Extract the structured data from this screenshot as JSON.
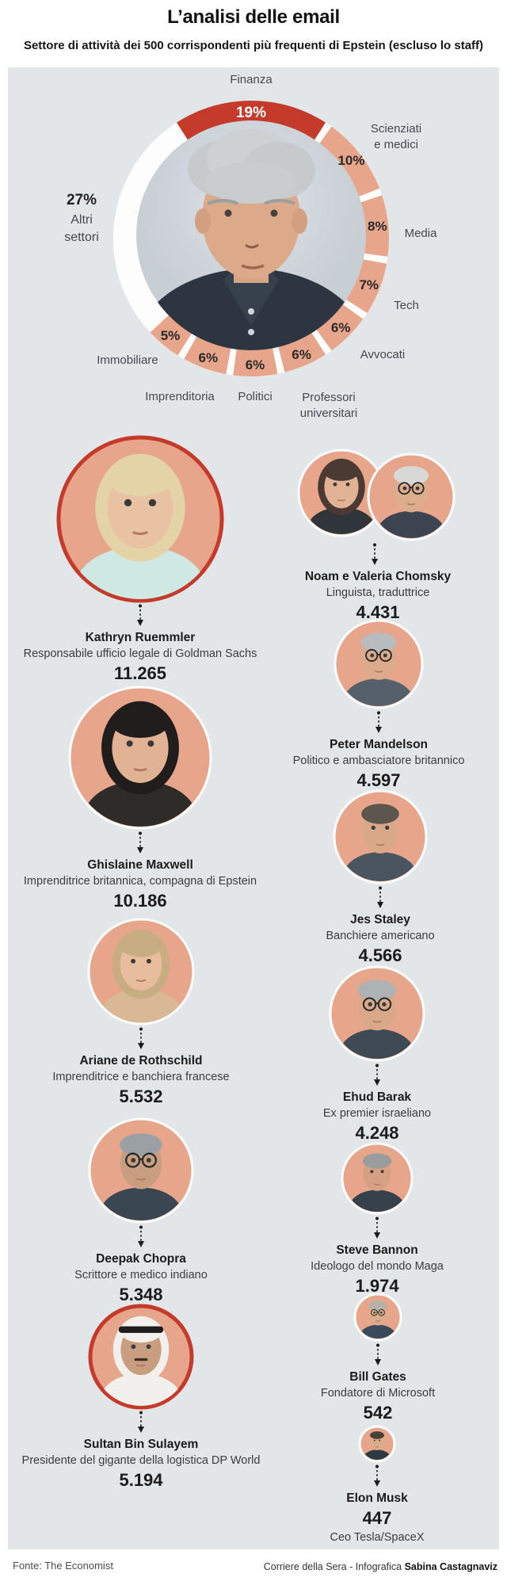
{
  "header": {
    "title": "L’analisi delle email",
    "subtitle": "Settore di attività dei 500 corrispondenti più frequenti di Epstein (escluso lo staff)"
  },
  "colors": {
    "panel_bg": "#e3e6e9",
    "accent_red": "#c43b2b",
    "salmon": "#e7a68b",
    "segment_white": "#fdfdfd",
    "text_dark": "#1b1b1b",
    "text_gray": "#45494d"
  },
  "chart_data": {
    "type": "pie",
    "variant": "donut",
    "unit": "%",
    "center_image_alt": "Jeffrey Epstein",
    "highlight_segment": "Finanza",
    "legend_position": "around",
    "segments": [
      {
        "label": "Finanza",
        "value": 19
      },
      {
        "label": "Scienziati e medici",
        "value": 10
      },
      {
        "label": "Media",
        "value": 8
      },
      {
        "label": "Tech",
        "value": 7
      },
      {
        "label": "Avvocati",
        "value": 6
      },
      {
        "label": "Professori universitari",
        "value": 6
      },
      {
        "label": "Politici",
        "value": 6
      },
      {
        "label": "Imprenditoria",
        "value": 6
      },
      {
        "label": "Immobiliare",
        "value": 5
      },
      {
        "label": "Altri settori",
        "value": 27
      }
    ]
  },
  "people": {
    "left": [
      {
        "id": "kathryn-ruemmler",
        "name": "Kathryn Ruemmler",
        "role": "Responsabile ufficio legale di Goldman Sachs",
        "count": "11.265"
      },
      {
        "id": "ghislaine-maxwell",
        "name": "Ghislaine Maxwell",
        "role": "Imprenditrice britannica, compagna di Epstein",
        "count": "10.186"
      },
      {
        "id": "ariane-de-rothschild",
        "name": "Ariane de Rothschild",
        "role": "Imprenditrice e banchiera francese",
        "count": "5.532"
      },
      {
        "id": "deepak-chopra",
        "name": "Deepak Chopra",
        "role": "Scrittore e medico indiano",
        "count": "5.348"
      },
      {
        "id": "sultan-bin-sulayem",
        "name": "Sultan Bin Sulayem",
        "role": "Presidente del gigante della logistica DP World",
        "count": "5.194"
      }
    ],
    "right": [
      {
        "id": "noam-valeria-chomsky",
        "name": "Noam e Valeria Chomsky",
        "role": "Linguista, traduttrice",
        "count": "4.431"
      },
      {
        "id": "peter-mandelson",
        "name": "Peter Mandelson",
        "role": "Politico e ambasciatore britannico",
        "count": "4.597"
      },
      {
        "id": "jes-staley",
        "name": "Jes Staley",
        "role": "Banchiere americano",
        "count": "4.566"
      },
      {
        "id": "ehud-barak",
        "name": "Ehud Barak",
        "role": "Ex premier israeliano",
        "count": "4.248"
      },
      {
        "id": "steve-bannon",
        "name": "Steve Bannon",
        "role": "Ideologo del mondo Maga",
        "count": "1.974"
      },
      {
        "id": "bill-gates",
        "name": "Bill Gates",
        "role": "Fondatore di Microsoft",
        "count": "542"
      },
      {
        "id": "elon-musk",
        "name": "Elon Musk",
        "role": "Ceo Tesla/SpaceX",
        "count": "447"
      }
    ]
  },
  "footer": {
    "source": "Fonte: The Economist",
    "credit_prefix": "Corriere della Sera - Infografica",
    "credit_author": "Sabina Castagnaviz"
  }
}
